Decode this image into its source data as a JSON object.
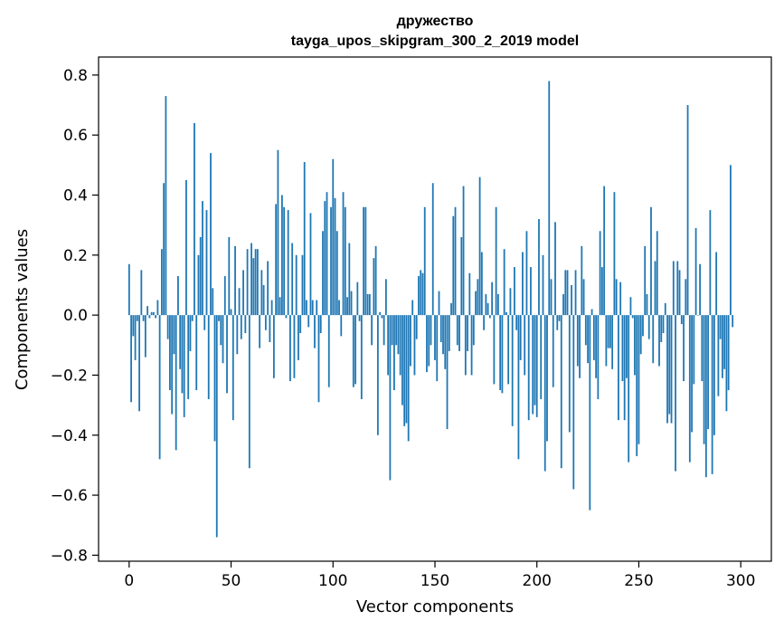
{
  "colors": {
    "bar": "#1f77b4",
    "axes": "#000000",
    "background": "#ffffff"
  },
  "chart_data": {
    "type": "bar",
    "title": "дружество",
    "subtitle": "tayga_upos_skipgram_300_2_2019 model",
    "xlabel": "Vector components",
    "ylabel": "Components values",
    "xlim": [
      -15,
      315
    ],
    "ylim": [
      -0.82,
      0.86
    ],
    "xticks": [
      0,
      50,
      100,
      150,
      200,
      250,
      300
    ],
    "xtick_labels": [
      "0",
      "50",
      "100",
      "150",
      "200",
      "250",
      "300"
    ],
    "yticks": [
      0.8,
      0.6,
      0.4,
      0.2,
      0.0,
      -0.2,
      -0.4,
      -0.6,
      -0.8
    ],
    "ytick_labels": [
      "0.8",
      "0.6",
      "0.4",
      "0.2",
      "0.0",
      "−0.2",
      "−0.4",
      "−0.6",
      "−0.8"
    ],
    "grid": false,
    "series": [
      {
        "name": "дружество",
        "values": [
          0.17,
          -0.29,
          -0.07,
          -0.15,
          -0.02,
          -0.32,
          0.15,
          -0.02,
          -0.14,
          0.03,
          -0.01,
          0.01,
          0.01,
          -0.01,
          0.05,
          -0.48,
          0.22,
          0.44,
          0.73,
          -0.08,
          -0.25,
          -0.33,
          -0.13,
          -0.45,
          0.13,
          -0.18,
          -0.26,
          -0.34,
          0.45,
          -0.28,
          -0.12,
          -0.02,
          0.64,
          -0.25,
          0.2,
          0.26,
          0.38,
          -0.05,
          0.35,
          -0.28,
          0.54,
          0.09,
          -0.42,
          -0.74,
          -0.02,
          -0.1,
          -0.16,
          0.13,
          -0.26,
          0.26,
          0.02,
          -0.35,
          0.23,
          -0.13,
          0.09,
          -0.08,
          0.15,
          -0.06,
          0.22,
          -0.51,
          0.24,
          0.19,
          0.22,
          0.22,
          -0.11,
          0.15,
          0.1,
          -0.05,
          0.18,
          -0.09,
          0.05,
          -0.21,
          0.37,
          0.55,
          0.06,
          0.4,
          0.36,
          -0.01,
          0.35,
          -0.22,
          0.24,
          -0.21,
          0.2,
          -0.15,
          -0.06,
          0.2,
          0.51,
          0.05,
          -0.04,
          0.34,
          0.05,
          -0.11,
          0.05,
          -0.29,
          -0.06,
          0.28,
          0.38,
          0.41,
          -0.24,
          0.36,
          0.52,
          0.39,
          0.28,
          0.05,
          -0.07,
          0.41,
          0.36,
          0.06,
          0.24,
          0.08,
          -0.24,
          -0.23,
          0.11,
          -0.02,
          -0.28,
          0.36,
          0.36,
          0.07,
          0.07,
          -0.1,
          0.19,
          0.23,
          -0.4,
          0.01,
          -0.01,
          -0.1,
          0.12,
          -0.2,
          -0.55,
          -0.1,
          -0.25,
          -0.1,
          -0.13,
          -0.2,
          -0.3,
          -0.37,
          -0.36,
          -0.42,
          -0.17,
          0.05,
          -0.2,
          -0.08,
          0.13,
          0.15,
          0.14,
          0.36,
          -0.19,
          -0.17,
          -0.1,
          0.44,
          -0.15,
          -0.22,
          0.08,
          -0.09,
          -0.13,
          -0.18,
          -0.38,
          -0.12,
          0.04,
          0.33,
          0.36,
          -0.1,
          -0.12,
          0.26,
          0.43,
          -0.2,
          -0.12,
          0.14,
          -0.2,
          -0.1,
          0.08,
          0.12,
          0.46,
          0.21,
          -0.05,
          0.07,
          0.04,
          -0.01,
          0.11,
          -0.23,
          0.36,
          0.07,
          -0.25,
          -0.26,
          0.22,
          0.01,
          -0.23,
          0.09,
          -0.37,
          0.16,
          -0.05,
          -0.48,
          -0.15,
          0.21,
          -0.2,
          0.28,
          -0.35,
          0.16,
          -0.33,
          -0.3,
          -0.34,
          0.32,
          -0.28,
          0.2,
          -0.52,
          -0.42,
          0.78,
          0.12,
          -0.24,
          0.31,
          -0.05,
          -0.02,
          -0.51,
          0.07,
          0.15,
          0.15,
          -0.39,
          0.1,
          -0.58,
          0.15,
          -0.17,
          -0.21,
          0.23,
          0.12,
          -0.1,
          -0.16,
          -0.65,
          0.02,
          -0.15,
          -0.21,
          -0.28,
          0.28,
          0.16,
          0.43,
          -0.17,
          -0.11,
          -0.11,
          -0.18,
          0.41,
          0.12,
          -0.35,
          0.11,
          -0.22,
          -0.35,
          -0.21,
          -0.49,
          0.06,
          -0.01,
          -0.2,
          -0.47,
          -0.43,
          -0.13,
          -0.07,
          0.23,
          0.07,
          -0.08,
          0.36,
          -0.16,
          0.18,
          0.28,
          -0.17,
          -0.09,
          -0.06,
          0.04,
          -0.36,
          -0.33,
          -0.36,
          0.18,
          -0.52,
          0.18,
          0.15,
          -0.03,
          -0.22,
          0.12,
          0.7,
          -0.49,
          -0.39,
          -0.23,
          0.29,
          0.0,
          0.17,
          -0.22,
          -0.43,
          -0.54,
          -0.38,
          0.35,
          -0.53,
          -0.4,
          0.21,
          -0.27,
          -0.08,
          -0.21,
          -0.18,
          -0.32,
          -0.25,
          0.5,
          -0.04
        ]
      }
    ]
  }
}
